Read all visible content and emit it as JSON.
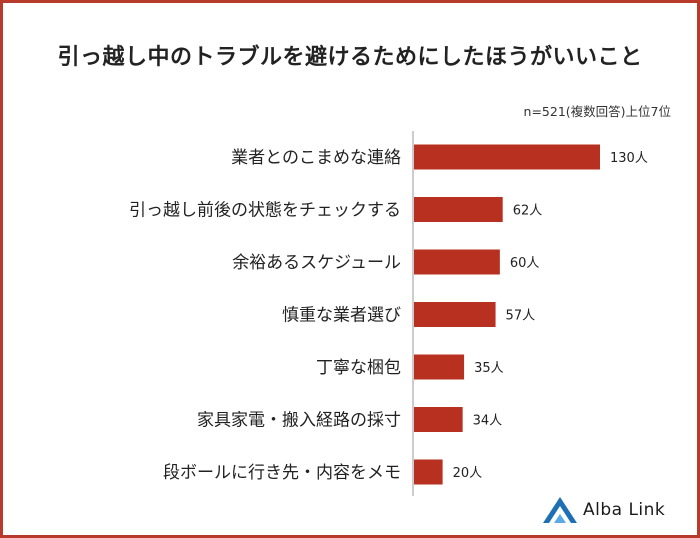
{
  "title": "引っ越し中のトラブルを避けるためにしたほうがいいこと",
  "note": "n=521(複数回答)上位7位",
  "brand": {
    "name": "Alba Link",
    "color": "#1f6fb5"
  },
  "colors": {
    "bar": "#b8301f",
    "frame": "#b83a2b",
    "axis": "#999999"
  },
  "chart_data": {
    "type": "bar",
    "orientation": "horizontal",
    "unit": "人",
    "categories": [
      "業者とのこまめな連絡",
      "引っ越し前後の状態をチェックする",
      "余裕あるスケジュール",
      "慎重な業者選び",
      "丁寧な梱包",
      "家具家電・搬入経路の採寸",
      "段ボールに行き先・内容をメモ"
    ],
    "values": [
      130,
      62,
      60,
      57,
      35,
      34,
      20
    ],
    "value_labels": [
      "130人",
      "62人",
      "60人",
      "57人",
      "35人",
      "34人",
      "20人"
    ],
    "xlim": [
      0,
      140
    ],
    "grid": false,
    "legend": "none"
  }
}
